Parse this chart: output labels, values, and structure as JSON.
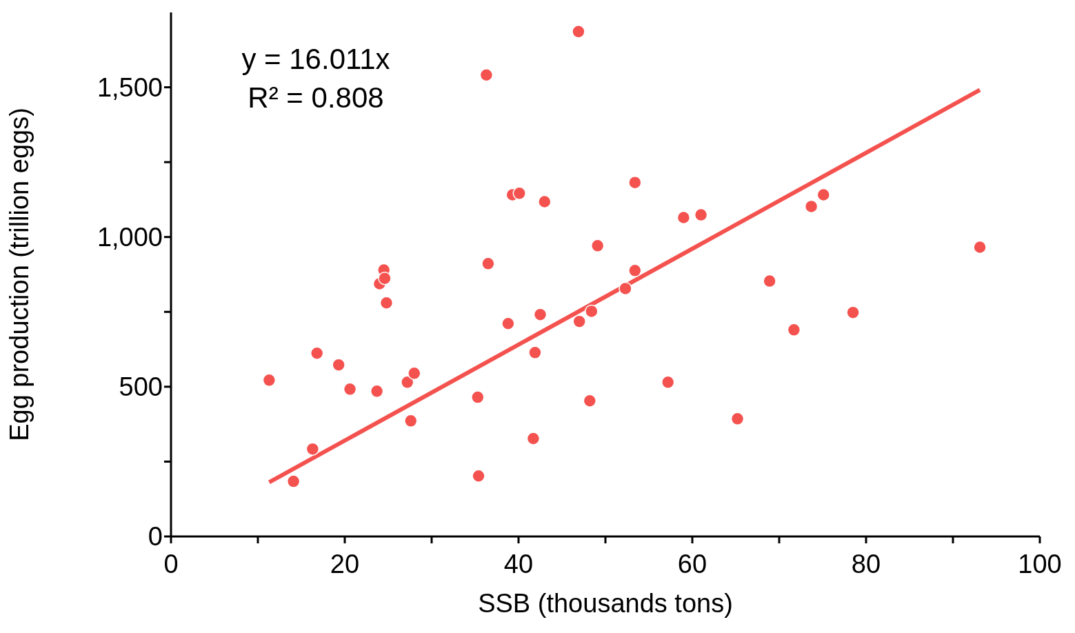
{
  "chart_data": {
    "type": "scatter",
    "xlabel": "SSB (thousands tons)",
    "ylabel": "Egg production (trillion eggs)",
    "annotations": [
      "y = 16.011x",
      "R² = 0.808"
    ],
    "xlim": [
      0,
      100
    ],
    "xticks": [
      0,
      {
        "value": 10,
        "label": null
      },
      20,
      {
        "value": 30,
        "label": null
      },
      40,
      {
        "value": 50,
        "label": null
      },
      60,
      {
        "value": 70,
        "label": null
      },
      80,
      {
        "value": 90,
        "label": null
      },
      100
    ],
    "ylim": [
      0,
      1750
    ],
    "yticks": [
      0,
      {
        "value": 250,
        "label": null
      },
      500,
      {
        "value": 750,
        "label": null
      },
      {
        "value": 1000,
        "label": "1,000"
      },
      {
        "value": 1250,
        "label": null
      },
      {
        "value": 1500,
        "label": "1,500"
      }
    ],
    "grid": false,
    "legend": false,
    "marker": "circle",
    "series": [
      {
        "color": "#f4524f",
        "x": [
          11.3,
          14.1,
          16.3,
          16.8,
          19.3,
          20.6,
          23.7,
          24.0,
          24.5,
          24.6,
          24.8,
          27.2,
          27.6,
          28.0,
          35.3,
          35.4,
          36.3,
          36.5,
          38.8,
          39.3,
          40.1,
          41.7,
          41.9,
          42.5,
          43.0,
          46.9,
          47.0,
          48.2,
          48.4,
          49.1,
          52.3,
          53.4,
          53.4,
          57.2,
          59.0,
          61.0,
          65.2,
          68.9,
          71.7,
          73.7,
          75.1,
          78.5,
          93.1
        ],
        "values": [
          522,
          184,
          292,
          612,
          573,
          492,
          485,
          844,
          890,
          862,
          780,
          515,
          386,
          545,
          465,
          202,
          1541,
          911,
          711,
          1141,
          1146,
          327,
          614,
          741,
          1118,
          1686,
          718,
          453,
          752,
          971,
          828,
          1182,
          888,
          515,
          1065,
          1074,
          393,
          853,
          690,
          1102,
          1141,
          748,
          966
        ]
      },
      {
        "type": "line",
        "color": "#f4524f",
        "line_style": "solid",
        "marker": "none",
        "x": [
          11.3,
          93.1
        ],
        "values": [
          181,
          1491
        ]
      }
    ]
  }
}
